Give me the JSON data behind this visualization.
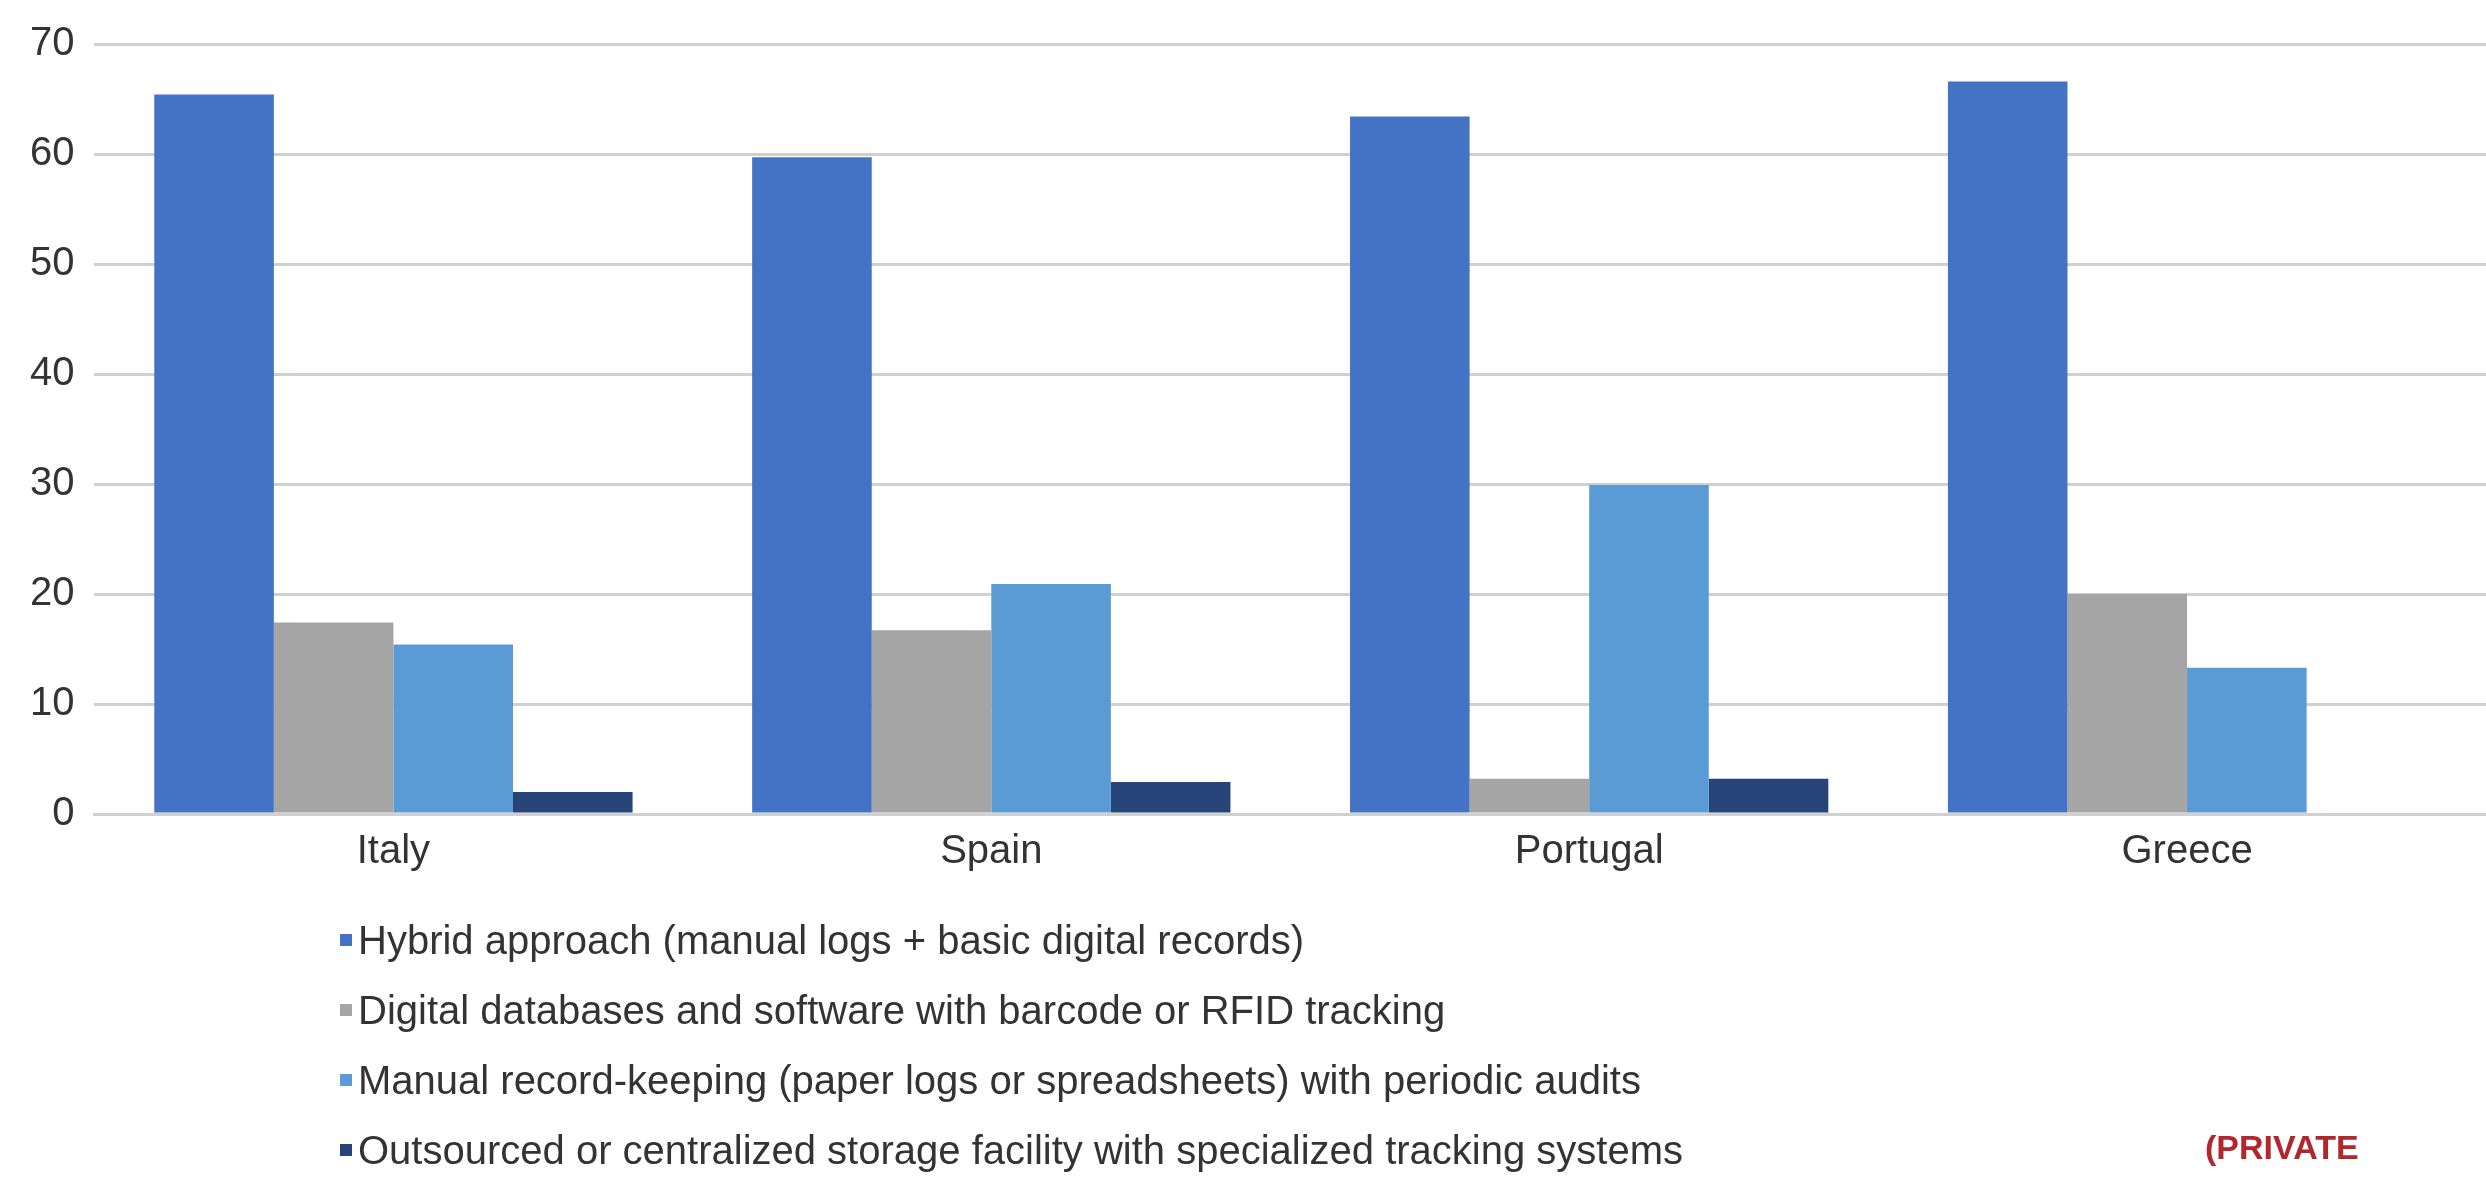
{
  "chart_data": {
    "type": "bar",
    "categories": [
      "Italy",
      "Spain",
      "Portugal",
      "Greece"
    ],
    "series": [
      {
        "name": "Hybrid approach (manual logs + basic digital records)",
        "color": "#4472c4",
        "values": [
          65.4,
          59.7,
          63.4,
          66.6
        ]
      },
      {
        "name": "Digital databases and software with barcode or RFID tracking",
        "color": "#a5a5a5",
        "values": [
          17.4,
          16.7,
          3.2,
          20.0
        ]
      },
      {
        "name": "Manual record-keeping (paper logs or spreadsheets) with periodic audits",
        "color": "#5b9bd5",
        "values": [
          15.4,
          20.9,
          29.9,
          13.3
        ]
      },
      {
        "name": "Outsourced or centralized storage facility with specialized tracking systems",
        "color": "#264478",
        "values": [
          2.0,
          2.9,
          3.2,
          0
        ]
      }
    ],
    "ylim": [
      0,
      70
    ],
    "yticks": [
      0,
      10,
      20,
      30,
      40,
      50,
      60,
      70
    ],
    "grid": "y",
    "legend": "bottom",
    "annotations": [
      "(PRIVATE"
    ]
  }
}
